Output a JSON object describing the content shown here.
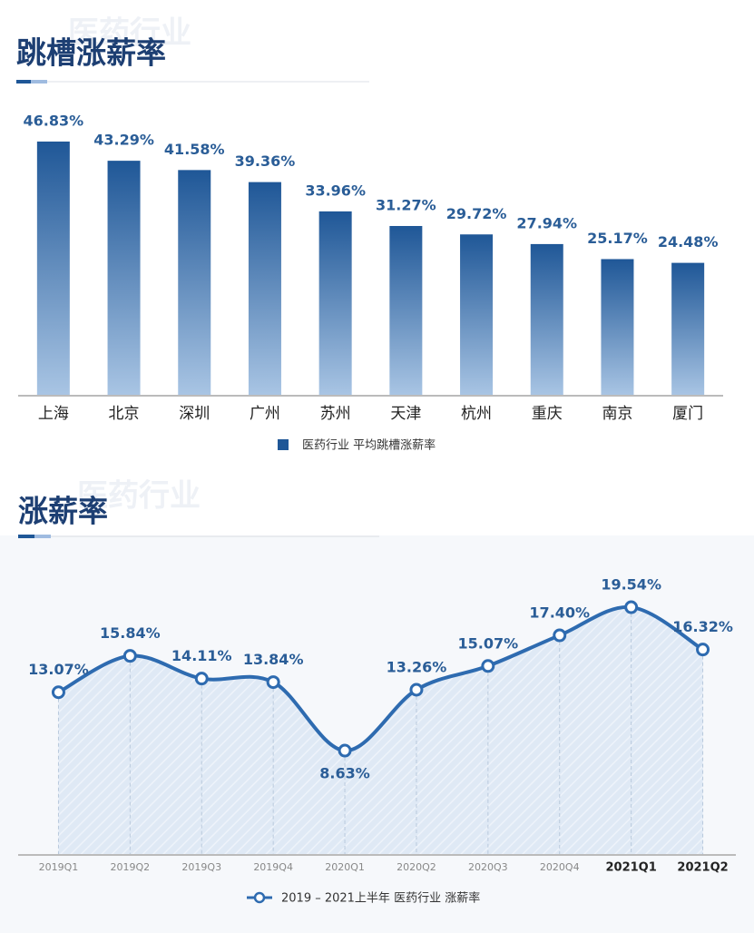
{
  "chart_data": [
    {
      "type": "bar",
      "title": "跳槽涨薪率",
      "watermark": "医药行业",
      "categories": [
        "上海",
        "北京",
        "深圳",
        "广州",
        "苏州",
        "天津",
        "杭州",
        "重庆",
        "南京",
        "厦门"
      ],
      "series": [
        {
          "name": "医药行业 平均跳槽涨薪率",
          "color": "#1f5797",
          "values": [
            46.83,
            43.29,
            41.58,
            39.36,
            33.96,
            31.27,
            29.72,
            27.94,
            25.17,
            24.48
          ],
          "value_labels": [
            "46.83%",
            "43.29%",
            "41.58%",
            "39.36%",
            "33.96%",
            "31.27%",
            "29.72%",
            "27.94%",
            "25.17%",
            "24.48%"
          ]
        }
      ],
      "ylim": [
        0,
        50
      ]
    },
    {
      "type": "line",
      "title": "涨薪率",
      "watermark": "医药行业",
      "categories": [
        "2019Q1",
        "2019Q2",
        "2019Q3",
        "2019Q4",
        "2020Q1",
        "2020Q2",
        "2020Q3",
        "2020Q4",
        "2021Q1",
        "2021Q2"
      ],
      "series": [
        {
          "name": "2019 – 2021上半年 医药行业 涨薪率",
          "color": "#2e6bb0",
          "values": [
            13.07,
            15.84,
            14.11,
            13.84,
            8.63,
            13.26,
            15.07,
            17.4,
            19.54,
            16.32
          ],
          "value_labels": [
            "13.07%",
            "15.84%",
            "14.11%",
            "13.84%",
            "8.63%",
            "13.26%",
            "15.07%",
            "17.40%",
            "19.54%",
            "16.32%"
          ]
        }
      ],
      "ylim": [
        0,
        25
      ]
    }
  ]
}
